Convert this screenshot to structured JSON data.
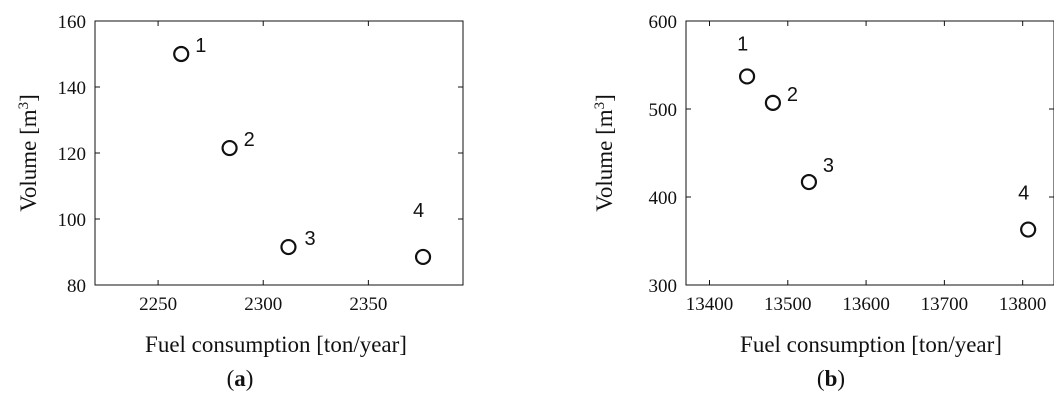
{
  "chart_data": [
    {
      "type": "scatter",
      "caption_letter": "a",
      "xlabel": "Fuel consumption [ton/year]",
      "ylabel_main": "Volume [m",
      "ylabel_sup": "3",
      "ylabel_tail": "]",
      "xlim": [
        2220,
        2395
      ],
      "ylim": [
        80,
        160
      ],
      "xticks": [
        2250,
        2300,
        2350
      ],
      "yticks": [
        80,
        100,
        120,
        140,
        160
      ],
      "grid": false,
      "points": [
        {
          "x": 2261,
          "y": 150,
          "label": "1"
        },
        {
          "x": 2284,
          "y": 121.5,
          "label": "2"
        },
        {
          "x": 2312,
          "y": 91.5,
          "label": "3"
        },
        {
          "x": 2376,
          "y": 88.5,
          "label": "4"
        }
      ]
    },
    {
      "type": "scatter",
      "caption_letter": "b",
      "xlabel": "Fuel consumption [ton/year]",
      "ylabel_main": "Volume [m",
      "ylabel_sup": "3",
      "ylabel_tail": "]",
      "xlim": [
        13370,
        13840
      ],
      "ylim": [
        300,
        600
      ],
      "xticks": [
        13400,
        13500,
        13600,
        13700,
        13800
      ],
      "yticks": [
        300,
        400,
        500,
        600
      ],
      "grid": false,
      "points": [
        {
          "x": 13448,
          "y": 537,
          "label": "1"
        },
        {
          "x": 13481,
          "y": 507,
          "label": "2"
        },
        {
          "x": 13527,
          "y": 417,
          "label": "3"
        },
        {
          "x": 13807,
          "y": 363,
          "label": "4"
        }
      ]
    }
  ]
}
